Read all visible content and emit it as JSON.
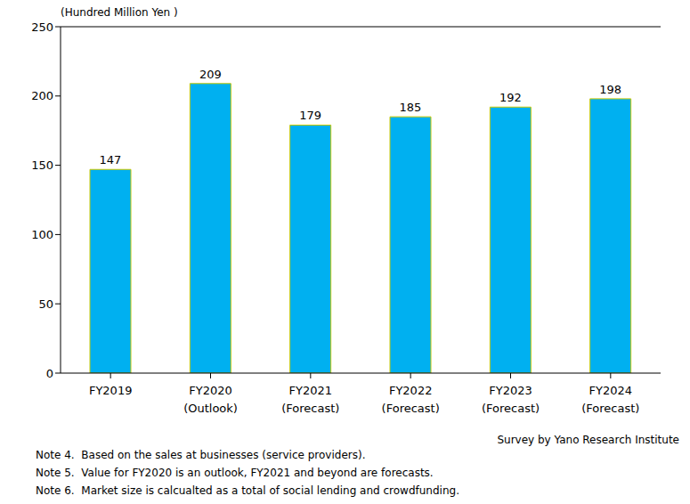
{
  "chart_data": {
    "type": "bar",
    "ylabel": "(Hundred Million Yen )",
    "categories": [
      "FY2019",
      "FY2020 (Outlook)",
      "FY2021 (Forecast)",
      "FY2022 (Forecast)",
      "FY2023 (Forecast)",
      "FY2024 (Forecast)"
    ],
    "values": [
      147,
      209,
      179,
      185,
      192,
      198
    ],
    "color": "#00b0f0",
    "ylim": [
      0,
      250
    ],
    "yticks": [
      0,
      50,
      100,
      150,
      200,
      250
    ],
    "grid": false,
    "data_labels": true,
    "source": "Survey by Yano Research Institute",
    "notes": [
      "Note 4.  Based on the sales at businesses (service providers).",
      "Note 5.  Value for FY2020 is an outlook, FY2021 and beyond are forecasts.",
      "Note 6.  Market size is calcualted as a total of social lending and crowdfunding."
    ]
  }
}
